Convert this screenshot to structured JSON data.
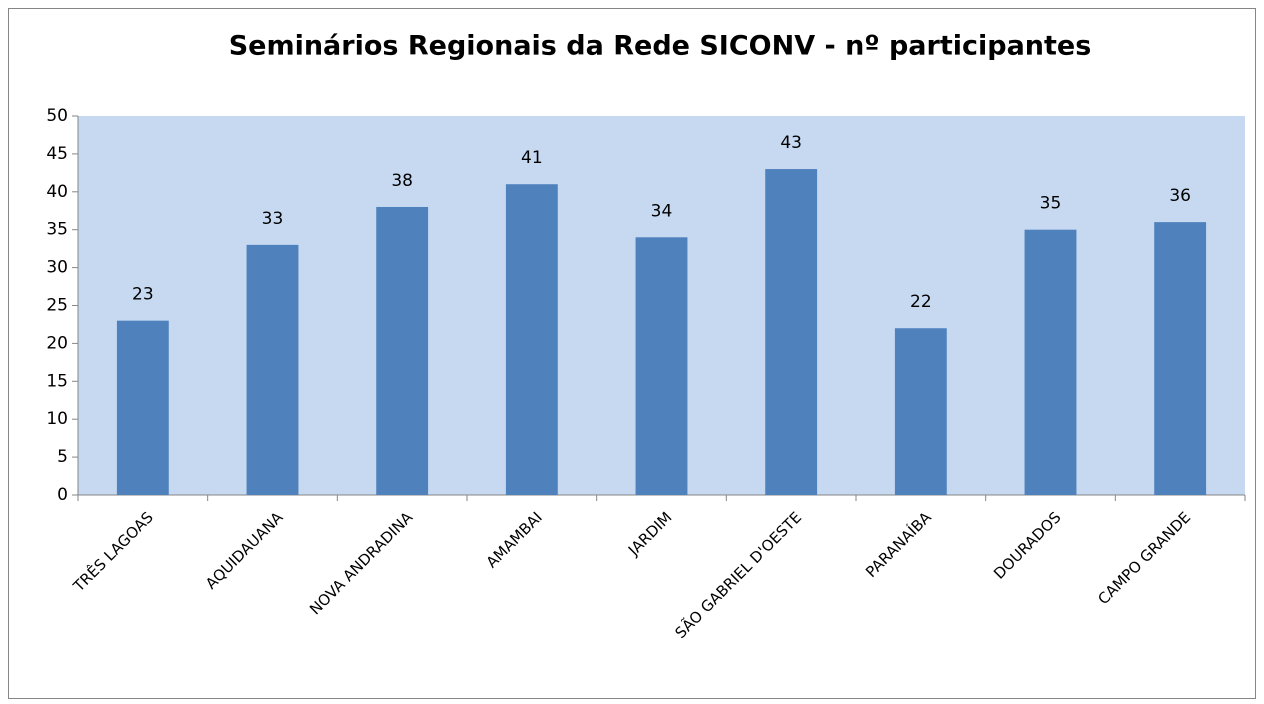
{
  "chart_data": {
    "type": "bar",
    "title": "Seminários Regionais da Rede SICONV - nº participantes",
    "categories": [
      "TRÊS LAGOAS",
      "AQUIDAUANA",
      "NOVA ANDRADINA",
      "AMAMBAI",
      "JARDIM",
      "SÃO GABRIEL D'OESTE",
      "PARANAÍBA",
      "DOURADOS",
      "CAMPO GRANDE"
    ],
    "values": [
      23,
      33,
      38,
      41,
      34,
      43,
      22,
      35,
      36
    ],
    "color": "#4f81bd",
    "plot_background": "#c6d9f1",
    "ylim": [
      0,
      50
    ],
    "yticks": [
      0,
      5,
      10,
      15,
      20,
      25,
      30,
      35,
      40,
      45,
      50
    ],
    "grid": false
  }
}
